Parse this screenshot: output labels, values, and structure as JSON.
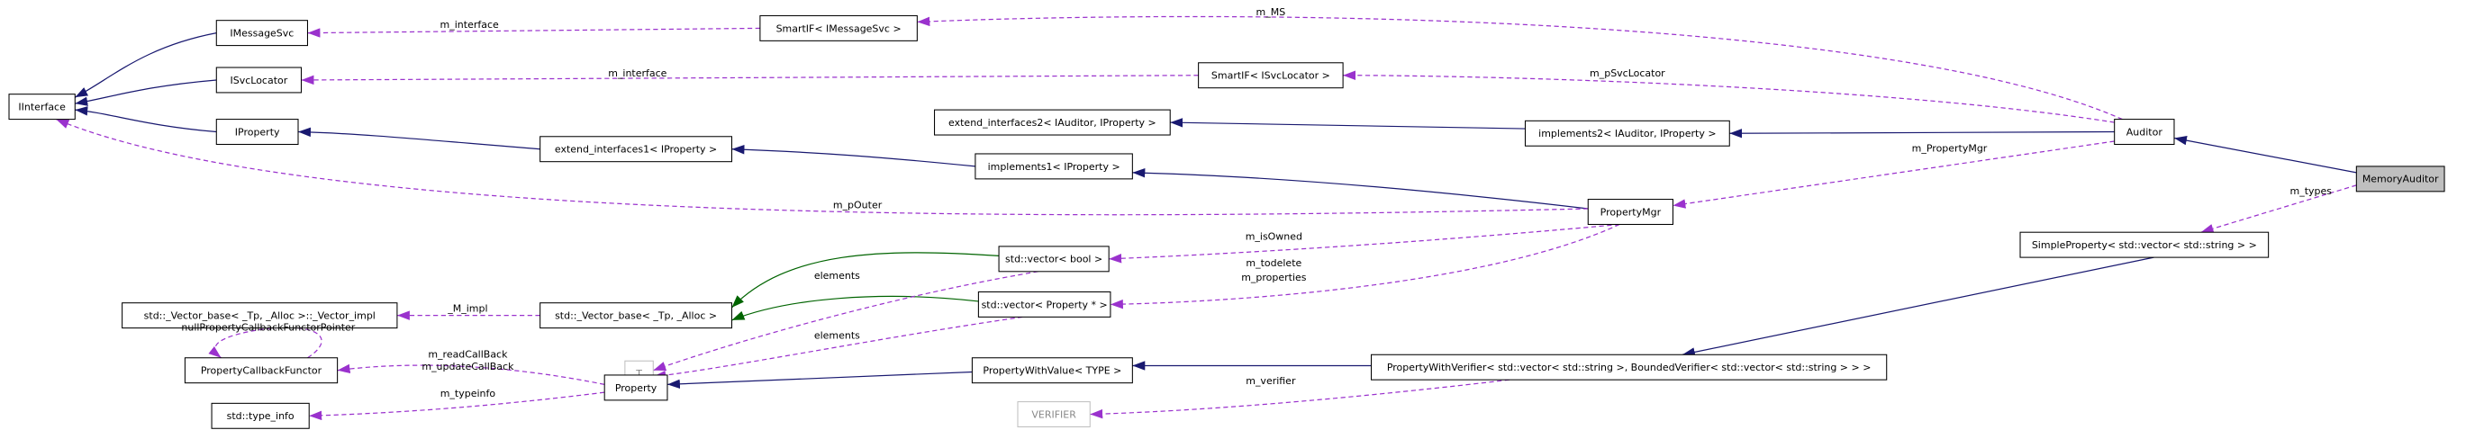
{
  "nodes": [
    {
      "label": "IInterface"
    },
    {
      "label": "IMessageSvc"
    },
    {
      "label": "ISvcLocator"
    },
    {
      "label": "IProperty"
    },
    {
      "label": "SmartIF< IMessageSvc >"
    },
    {
      "label": "SmartIF< ISvcLocator >"
    },
    {
      "label": "extend_interfaces2< IAuditor, IProperty >"
    },
    {
      "label": "implements2< IAuditor, IProperty >"
    },
    {
      "label": "Auditor"
    },
    {
      "label": "MemoryAuditor"
    },
    {
      "label": "extend_interfaces1< IProperty >"
    },
    {
      "label": "implements1< IProperty >"
    },
    {
      "label": "PropertyMgr"
    },
    {
      "label": "SimpleProperty< std::vector< std::string > >"
    },
    {
      "label": "std::_Vector_base< _Tp, _Alloc >::_Vector_impl"
    },
    {
      "label": "std::_Vector_base< _Tp, _Alloc >"
    },
    {
      "label": "std::vector< bool >"
    },
    {
      "label": "std::vector< Property * >"
    },
    {
      "label": "T"
    },
    {
      "label": "PropertyCallbackFunctor"
    },
    {
      "label": "std::type_info"
    },
    {
      "label": "Property"
    },
    {
      "label": "PropertyWithValue< TYPE >"
    },
    {
      "label": "PropertyWithVerifier< std::vector< std::string >, BoundedVerifier< std::vector< std::string > > >"
    },
    {
      "label": "VERIFIER"
    }
  ],
  "edge_labels": [
    {
      "label": "m_interface"
    },
    {
      "label": "m_MS"
    },
    {
      "label": "m_interface"
    },
    {
      "label": "m_pSvcLocator"
    },
    {
      "label": "m_PropertyMgr"
    },
    {
      "label": "m_pOuter"
    },
    {
      "label": "m_types"
    },
    {
      "label": "m_isOwned"
    },
    {
      "label": "_M_impl"
    },
    {
      "label": "m_todelete"
    },
    {
      "label": "m_properties"
    },
    {
      "label": "elements"
    },
    {
      "label": "elements"
    },
    {
      "label": "nullPropertyCallbackFunctorPointer"
    },
    {
      "label": "m_readCallBack"
    },
    {
      "label": "m_updateCallBack"
    },
    {
      "label": "m_typeinfo"
    },
    {
      "label": "m_verifier"
    }
  ]
}
